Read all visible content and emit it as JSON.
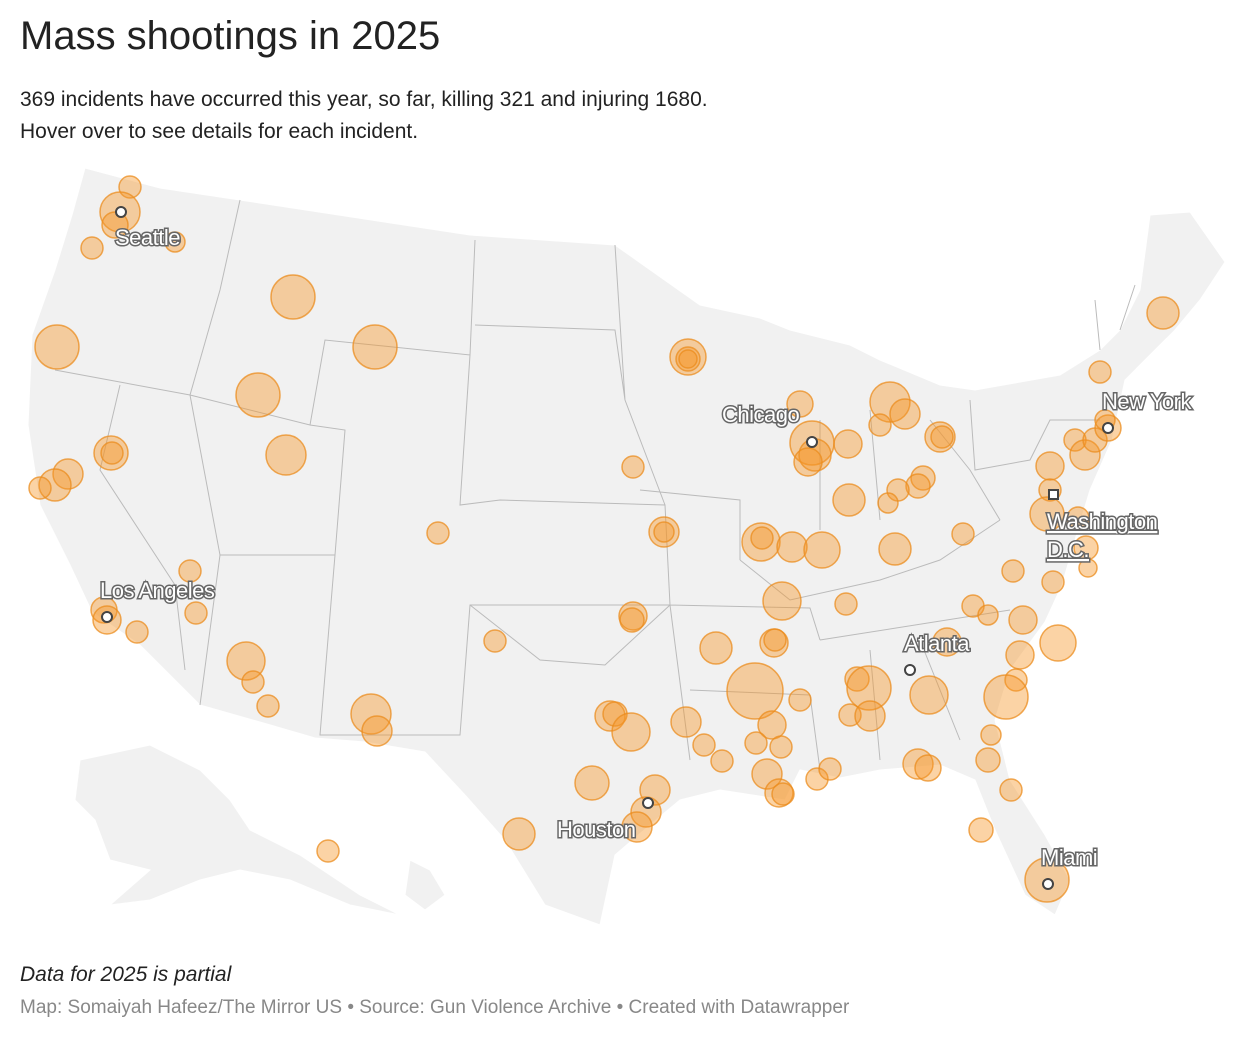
{
  "header": {
    "title": "Mass shootings in 2025",
    "subtitle": [
      "369 incidents have occurred this year, so far, killing 321 and injuring 1680.",
      "Hover over to see details for each incident."
    ]
  },
  "map": {
    "cities": [
      "Seattle",
      "New York",
      "Chicago",
      "Washington",
      "D.C.",
      "Los Angeles",
      "Atlanta",
      "Houston",
      "Miami"
    ]
  },
  "footer": {
    "note": "Data for 2025 is partial",
    "credit": "Map: Somaiyah Hafeez/The Mirror US • Source: Gun Violence Archive • Created with Datawrapper"
  }
}
